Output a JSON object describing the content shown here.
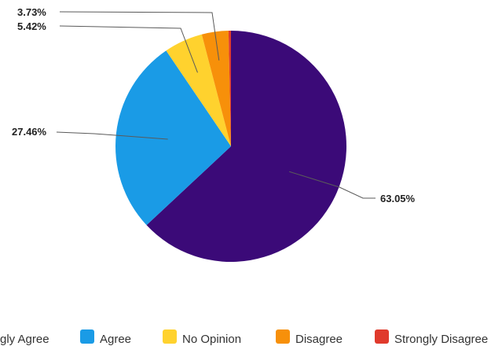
{
  "chart_data": {
    "type": "pie",
    "categories": [
      "Strongly Agree",
      "Agree",
      "No Opinion",
      "Disagree",
      "Strongly Disagree"
    ],
    "legend_labels": [
      "gly Agree",
      "Agree",
      "No Opinion",
      "Disagree",
      "Strongly Disagree"
    ],
    "values": [
      63.05,
      27.46,
      5.42,
      3.73,
      0.34
    ],
    "data_labels": [
      "63.05%",
      "27.46%",
      "5.42%",
      "3.73%",
      ""
    ],
    "colors": [
      "#3b0a78",
      "#1a9be6",
      "#ffd22e",
      "#f7900a",
      "#e03a2c"
    ],
    "legend_position": "bottom"
  }
}
